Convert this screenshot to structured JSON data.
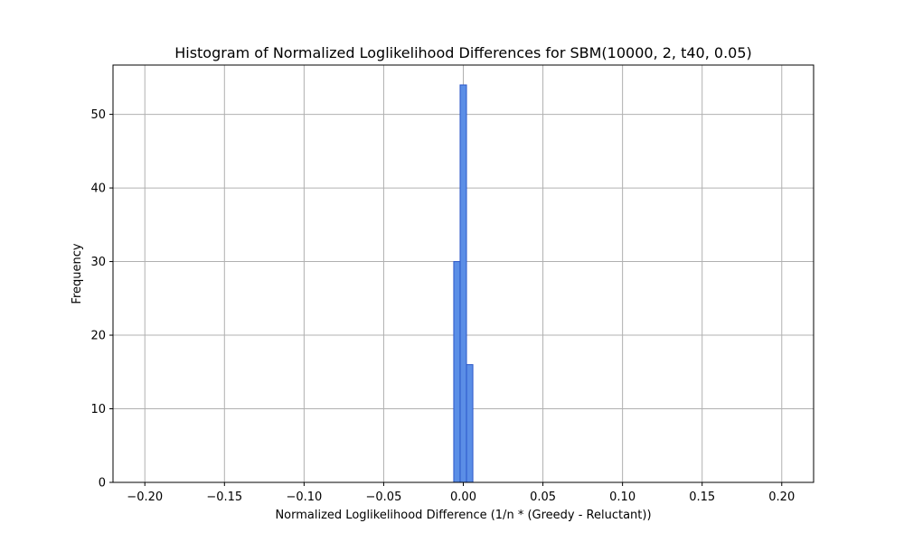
{
  "chart_data": {
    "type": "bar",
    "title": "Histogram of Normalized Loglikelihood Differences for SBM(10000, 2, t40, 0.05)",
    "xlabel": "Normalized Loglikelihood Difference (1/n * (Greedy - Reluctant))",
    "ylabel": "Frequency",
    "xlim": [
      -0.22,
      0.22
    ],
    "ylim": [
      0,
      56.7
    ],
    "x_ticks": [
      -0.2,
      -0.15,
      -0.1,
      -0.05,
      0.0,
      0.05,
      0.1,
      0.15,
      0.2
    ],
    "x_tick_labels": [
      "−0.20",
      "−0.15",
      "−0.10",
      "−0.05",
      "0.00",
      "0.05",
      "0.10",
      "0.15",
      "0.20"
    ],
    "y_ticks": [
      0,
      10,
      20,
      30,
      40,
      50
    ],
    "y_tick_labels": [
      "0",
      "10",
      "20",
      "30",
      "40",
      "50"
    ],
    "grid": true,
    "bins": [
      {
        "x0": -0.006,
        "x1": -0.002,
        "count": 30
      },
      {
        "x0": -0.002,
        "x1": 0.002,
        "count": 54
      },
      {
        "x0": 0.002,
        "x1": 0.006,
        "count": 16
      }
    ],
    "colors": {
      "bar_fill": "#5b8ee6",
      "bar_edge": "#2b57c9",
      "grid": "#b0b0b0"
    }
  }
}
